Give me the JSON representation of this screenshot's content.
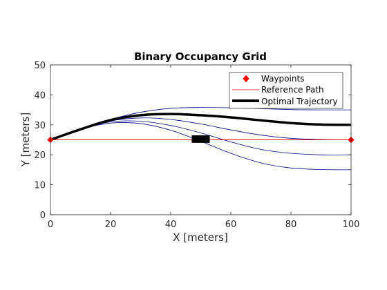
{
  "chart_data": {
    "type": "line",
    "title": "Binary Occupancy Grid",
    "xlabel": "X [meters]",
    "ylabel": "Y [meters]",
    "xlim": [
      0,
      100
    ],
    "ylim": [
      0,
      50
    ],
    "xticks": [
      0,
      20,
      40,
      60,
      80,
      100
    ],
    "yticks": [
      0,
      10,
      20,
      30,
      40,
      50
    ],
    "grid": false,
    "legend_position": "top-right",
    "legend": [
      "Waypoints",
      "Reference Path",
      "Optimal Trajectory"
    ],
    "waypoints": {
      "x": [
        0,
        100
      ],
      "y": [
        25,
        25
      ],
      "color": "#ff0000"
    },
    "reference_path": {
      "x": [
        0,
        100
      ],
      "y": [
        25,
        25
      ],
      "color": "#ff0000"
    },
    "obstacle": {
      "x": [
        47,
        53
      ],
      "y": [
        24,
        26.5
      ],
      "color": "#000000"
    },
    "candidate_trajectories": [
      {
        "color": "#00008b",
        "x": [
          0,
          10,
          20,
          30,
          40,
          50,
          60,
          70,
          80,
          90,
          100
        ],
        "y": [
          25,
          28.5,
          31.8,
          34.2,
          35.5,
          35.8,
          35.7,
          35.4,
          35.1,
          35.0,
          35.0
        ]
      },
      {
        "color": "#00008b",
        "x": [
          0,
          10,
          20,
          30,
          40,
          50,
          60,
          70,
          80,
          90,
          100
        ],
        "y": [
          25,
          28.5,
          31.3,
          32.3,
          31.8,
          30.3,
          28.3,
          26.6,
          25.5,
          25.1,
          25.0
        ]
      },
      {
        "color": "#00008b",
        "x": [
          0,
          10,
          20,
          30,
          40,
          50,
          60,
          70,
          80,
          90,
          100
        ],
        "y": [
          25,
          28.5,
          31.0,
          31.2,
          29.8,
          27.3,
          24.3,
          21.8,
          20.5,
          20.0,
          20.0
        ]
      },
      {
        "color": "#00008b",
        "x": [
          0,
          10,
          20,
          30,
          40,
          50,
          60,
          70,
          80,
          90,
          100
        ],
        "y": [
          25,
          28.5,
          30.6,
          30.4,
          28.2,
          24.5,
          20.5,
          17.3,
          15.6,
          15.1,
          15.0
        ]
      }
    ],
    "optimal_trajectory": {
      "color": "#000000",
      "x": [
        0,
        10,
        20,
        30,
        40,
        50,
        60,
        70,
        80,
        90,
        100
      ],
      "y": [
        25,
        28.5,
        31.6,
        33.2,
        33.6,
        33.2,
        32.5,
        31.5,
        30.6,
        30.1,
        30.0
      ]
    }
  }
}
